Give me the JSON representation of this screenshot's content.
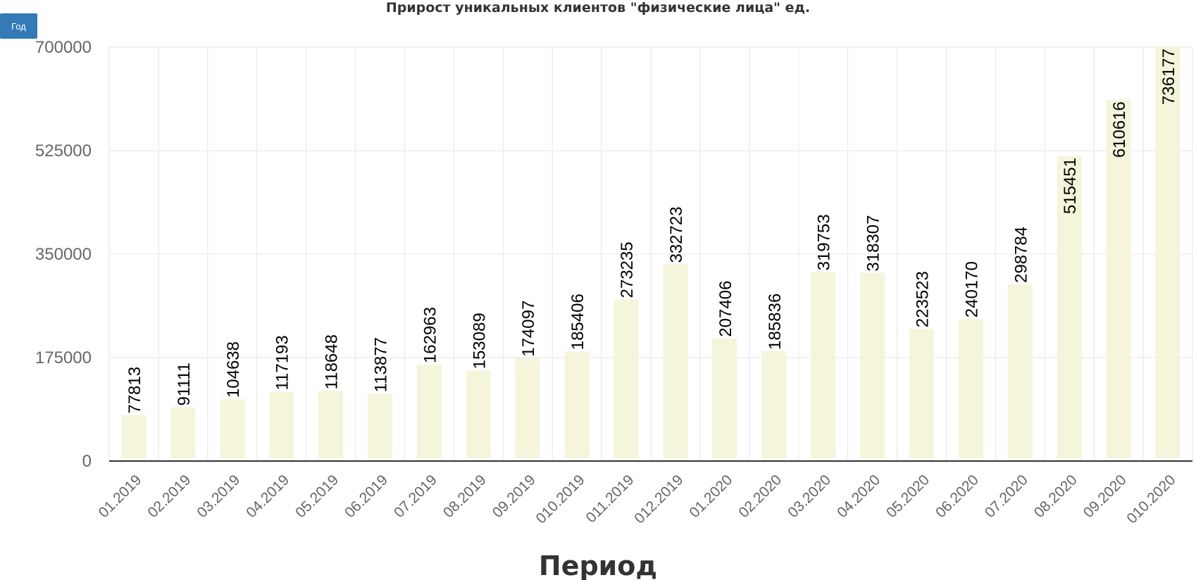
{
  "controls": {
    "period_button_label": "Год"
  },
  "colors": {
    "bar": "#f5f5dc",
    "grid": "#e6e6e6",
    "axis": "#333333",
    "label": "#000000",
    "tick_text": "#666666",
    "button": "#337ab7"
  },
  "chart_data": {
    "type": "bar",
    "title": "Прирост уникальных клиентов \"физические лица\" ед.",
    "xlabel": "Период",
    "ylabel": "",
    "ylim": [
      0,
      700000
    ],
    "yticks": [
      "0",
      "175000",
      "350000",
      "525000",
      "700000"
    ],
    "grid": true,
    "categories": [
      "01.2019",
      "02.2019",
      "03.2019",
      "04.2019",
      "05.2019",
      "06.2019",
      "07.2019",
      "08.2019",
      "09.2019",
      "010.2019",
      "011.2019",
      "012.2019",
      "01.2020",
      "02.2020",
      "03.2020",
      "04.2020",
      "05.2020",
      "06.2020",
      "07.2020",
      "08.2020",
      "09.2020",
      "010.2020"
    ],
    "values": [
      77813,
      91111,
      104638,
      117193,
      118648,
      113877,
      162963,
      153089,
      174097,
      185406,
      273235,
      332723,
      207406,
      185836,
      319753,
      318307,
      223523,
      240170,
      298784,
      515451,
      610616,
      736177
    ],
    "data_labels": [
      "77813",
      "91111",
      "104638",
      "117193",
      "118648",
      "113877",
      "162963",
      "153089",
      "174097",
      "185406",
      "273235",
      "332723",
      "207406",
      "185836",
      "319753",
      "318307",
      "223523",
      "240170",
      "298784",
      "515451",
      "610616",
      "736177"
    ]
  }
}
